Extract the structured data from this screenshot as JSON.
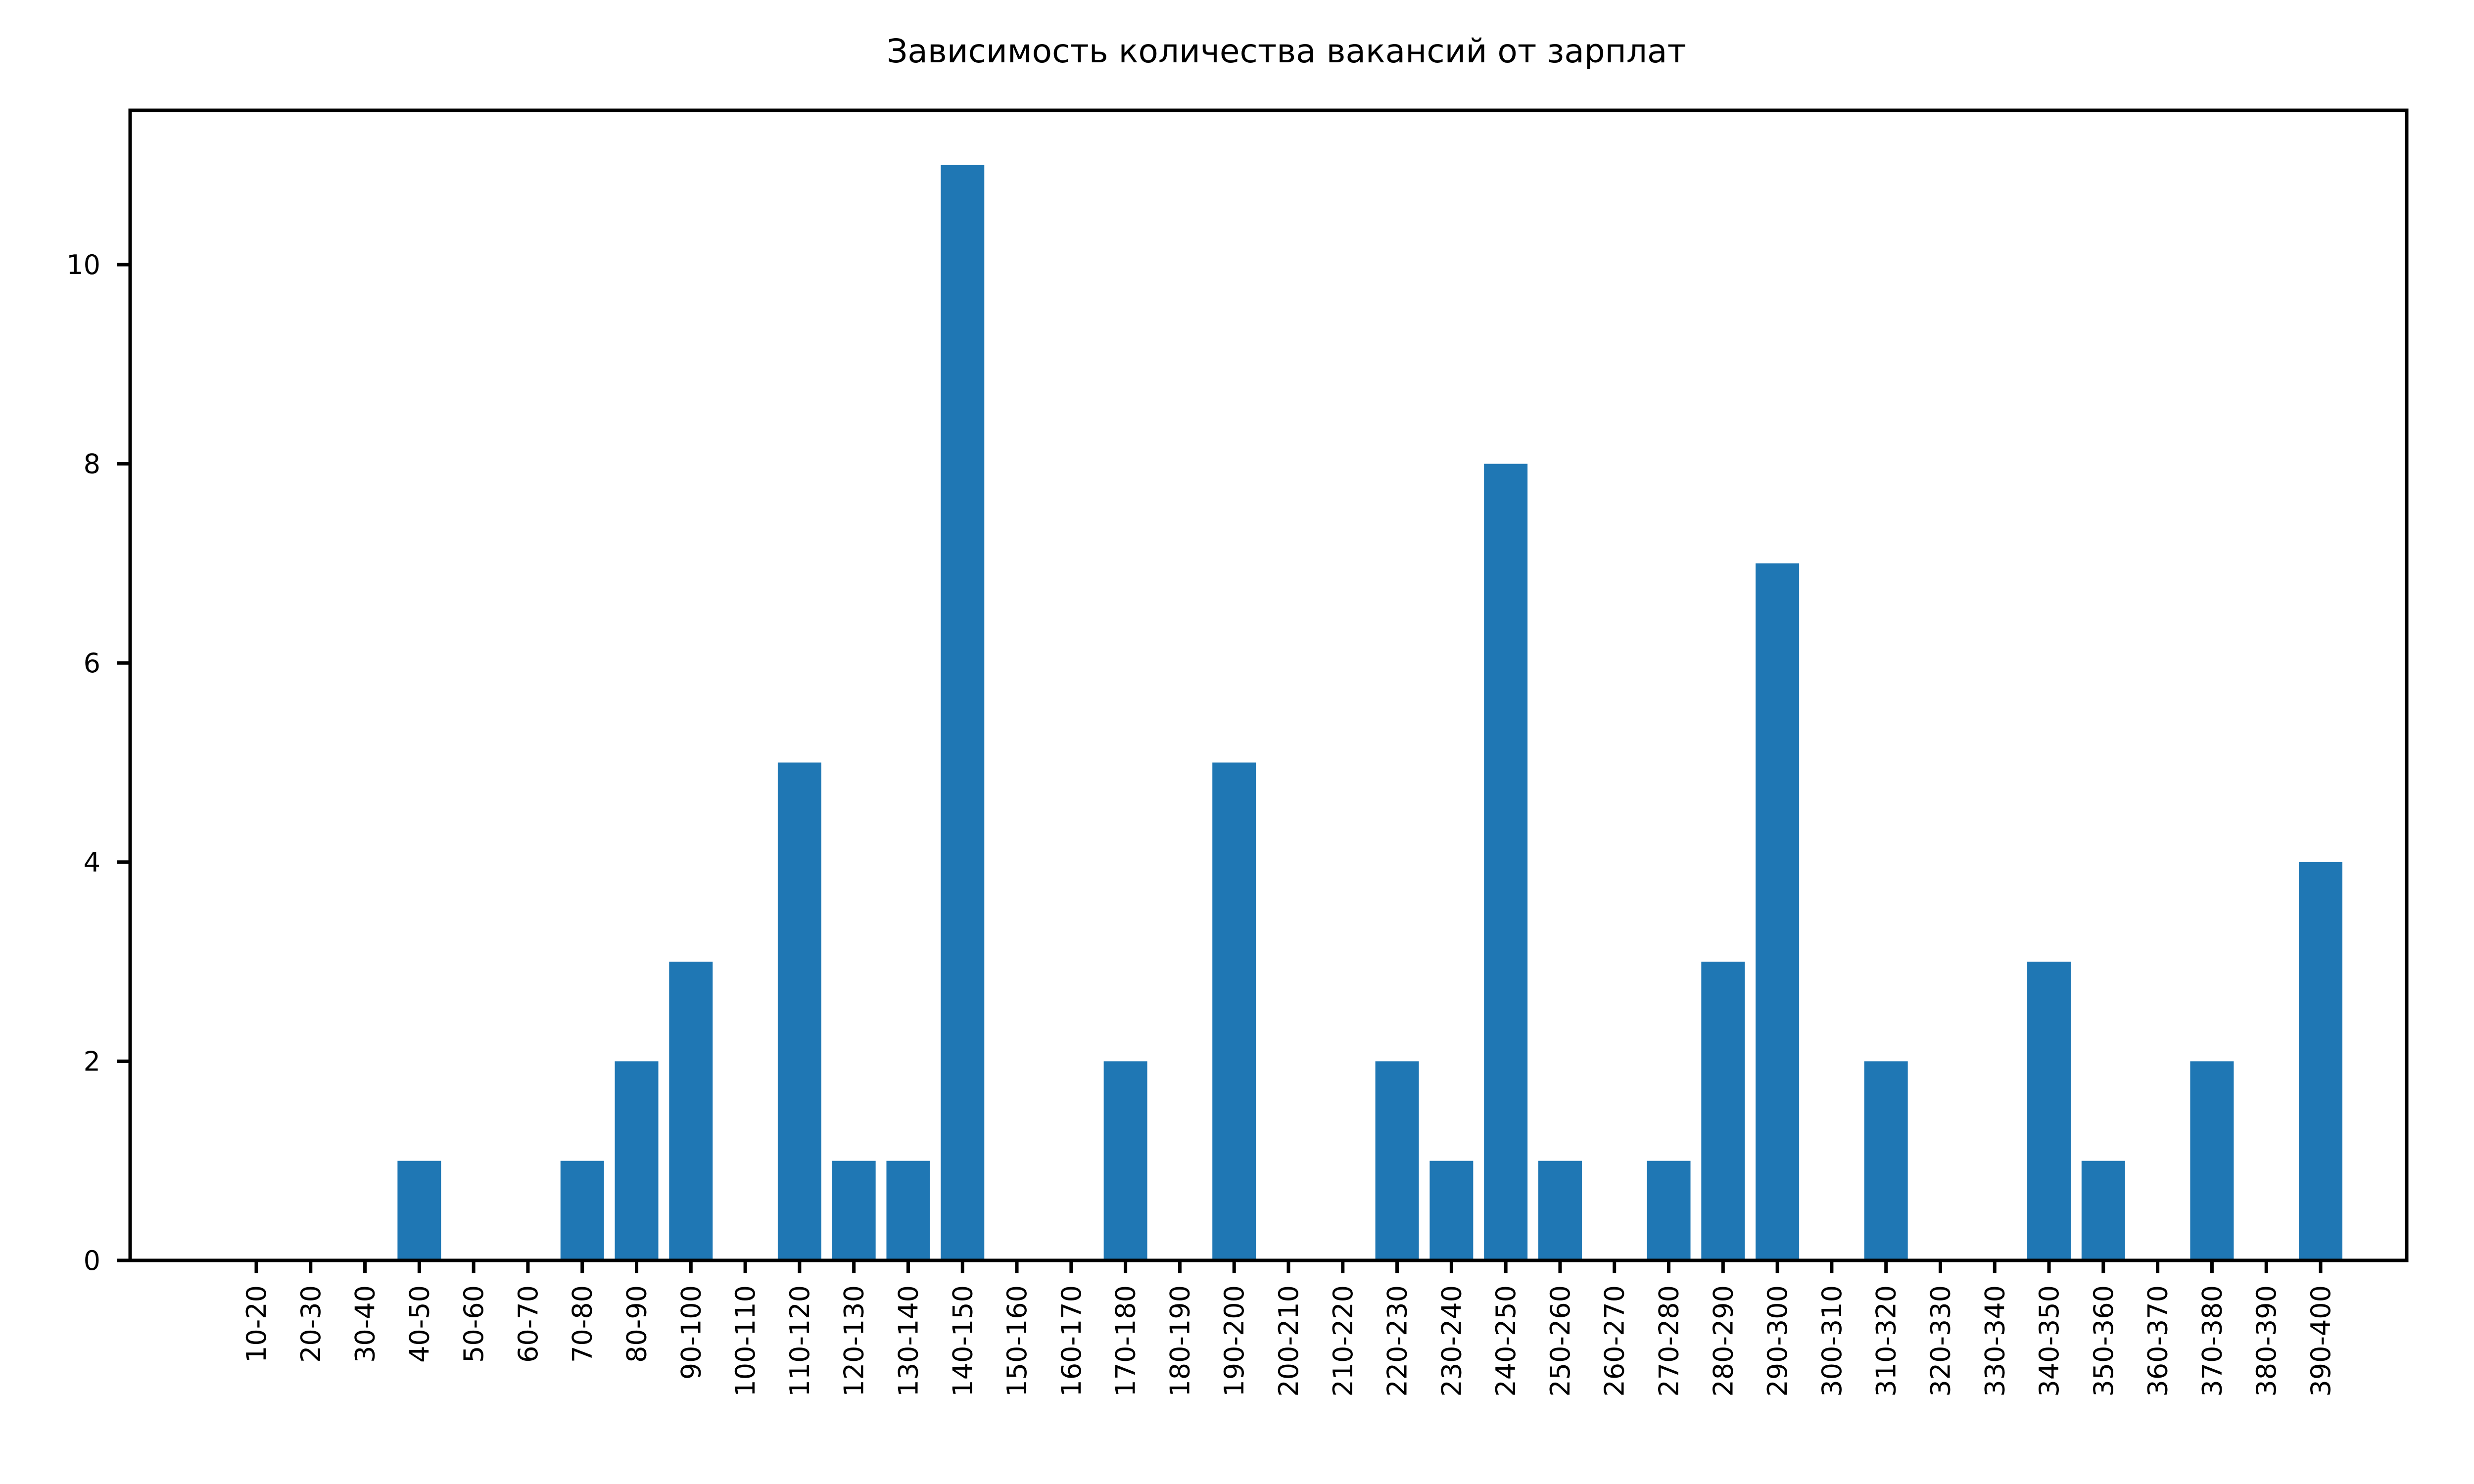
{
  "chart_data": {
    "type": "bar",
    "title": "Зависимость количества вакансий от зарплат",
    "xlabel": "",
    "ylabel": "",
    "categories": [
      "10-20",
      "20-30",
      "30-40",
      "40-50",
      "50-60",
      "60-70",
      "70-80",
      "80-90",
      "90-100",
      "100-110",
      "110-120",
      "120-130",
      "130-140",
      "140-150",
      "150-160",
      "160-170",
      "170-180",
      "180-190",
      "190-200",
      "200-210",
      "210-220",
      "220-230",
      "230-240",
      "240-250",
      "250-260",
      "260-270",
      "270-280",
      "280-290",
      "290-300",
      "300-310",
      "310-320",
      "320-330",
      "330-340",
      "340-350",
      "350-360",
      "360-370",
      "370-380",
      "380-390",
      "390-400"
    ],
    "values": [
      0,
      0,
      0,
      1,
      0,
      0,
      1,
      2,
      3,
      0,
      5,
      1,
      1,
      11,
      0,
      0,
      2,
      0,
      5,
      0,
      0,
      2,
      1,
      8,
      1,
      0,
      1,
      3,
      7,
      0,
      2,
      0,
      0,
      3,
      1,
      0,
      2,
      0,
      4
    ],
    "ylim": [
      0,
      11.55
    ],
    "yticks": [
      0,
      2,
      4,
      6,
      8,
      10
    ],
    "grid": false,
    "bar_color": "#1f77b4"
  }
}
